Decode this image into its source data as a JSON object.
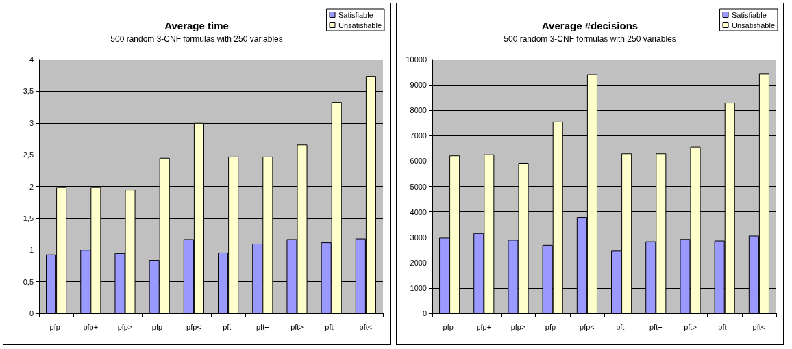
{
  "chart_data": [
    {
      "type": "bar",
      "title": "Average time",
      "subtitle": "500 random 3-CNF formulas with 250 variables",
      "categories": [
        "pfp-",
        "pfp+",
        "pfp>",
        "pfp=",
        "pfp<",
        "pft-",
        "pft+",
        "pft>",
        "pft=",
        "pft<"
      ],
      "series": [
        {
          "name": "Satisfiable",
          "color": "#9999ff",
          "values": [
            0.93,
            1.0,
            0.95,
            0.84,
            1.17,
            0.96,
            1.1,
            1.17,
            1.12,
            1.18
          ]
        },
        {
          "name": "Unsatisfiable",
          "color": "#ffffcc",
          "values": [
            1.99,
            1.99,
            1.95,
            2.45,
            3.0,
            2.47,
            2.47,
            2.66,
            3.33,
            3.74
          ]
        }
      ],
      "ylim": [
        0,
        4
      ],
      "yticks": [
        0,
        {
          "value": 0.5,
          "label": "0,5"
        },
        1,
        {
          "value": 1.5,
          "label": "1,5"
        },
        2,
        {
          "value": 2.5,
          "label": "2,5"
        },
        3,
        {
          "value": 3.5,
          "label": "3,5"
        },
        4
      ],
      "grid": "y",
      "legend": "top right"
    },
    {
      "type": "bar",
      "title": "Average #decisions",
      "subtitle": "500 random 3-CNF formulas with 250 variables",
      "categories": [
        "pfp-",
        "pfp+",
        "pfp>",
        "pfp=",
        "pfp<",
        "pft-",
        "pft+",
        "pft>",
        "pft=",
        "pft<"
      ],
      "series": [
        {
          "name": "Satisfiable",
          "color": "#9999ff",
          "values": [
            2980,
            3160,
            2900,
            2700,
            3800,
            2470,
            2840,
            2930,
            2870,
            3060
          ]
        },
        {
          "name": "Unsatisfiable",
          "color": "#ffffcc",
          "values": [
            6220,
            6260,
            5930,
            7550,
            9420,
            6300,
            6300,
            6560,
            8300,
            9450
          ]
        }
      ],
      "ylim": [
        0,
        10000
      ],
      "yticks": [
        0,
        1000,
        2000,
        3000,
        4000,
        5000,
        6000,
        7000,
        8000,
        9000,
        10000
      ],
      "grid": "y",
      "legend": "top right"
    }
  ]
}
